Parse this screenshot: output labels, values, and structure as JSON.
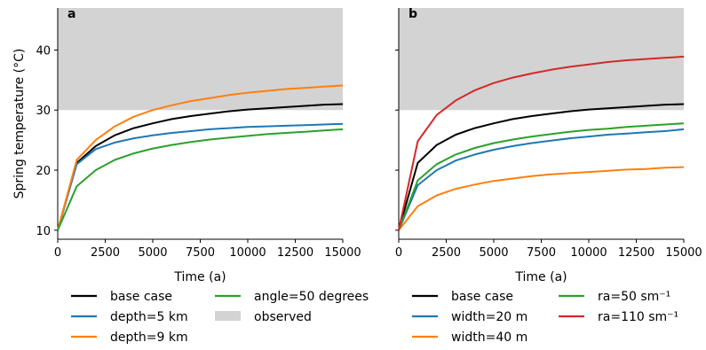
{
  "chart_data": [
    {
      "type": "line",
      "panel_label": "a",
      "xlabel": "Time (a)",
      "ylabel": "Spring temperature (°C)",
      "xlim": [
        0,
        15000
      ],
      "ylim": [
        8.5,
        47
      ],
      "xticks": [
        0,
        2500,
        5000,
        7500,
        10000,
        12500,
        15000
      ],
      "yticks": [
        10,
        20,
        30,
        40
      ],
      "observed_band": {
        "name": "observed",
        "y_range": [
          30,
          47
        ],
        "color": "#d3d3d3"
      },
      "x": [
        0,
        1000,
        2000,
        3000,
        4000,
        5000,
        6000,
        7000,
        8000,
        9000,
        10000,
        11000,
        12000,
        13000,
        14000,
        15000
      ],
      "series": [
        {
          "name": "base case",
          "color": "#000000",
          "values": [
            10,
            21.2,
            24.0,
            25.8,
            27.0,
            27.8,
            28.5,
            29.0,
            29.4,
            29.8,
            30.1,
            30.3,
            30.5,
            30.7,
            30.9,
            31.0
          ]
        },
        {
          "name": "depth=5 km",
          "color": "#1f77b4",
          "values": [
            10,
            21.0,
            23.5,
            24.6,
            25.3,
            25.8,
            26.2,
            26.5,
            26.8,
            27.0,
            27.2,
            27.3,
            27.4,
            27.5,
            27.6,
            27.7
          ]
        },
        {
          "name": "depth=9 km",
          "color": "#ff7f0e",
          "values": [
            10,
            21.7,
            25.0,
            27.3,
            28.9,
            30.0,
            30.8,
            31.5,
            32.0,
            32.5,
            32.9,
            33.2,
            33.5,
            33.7,
            33.9,
            34.1
          ]
        },
        {
          "name": "angle=50 degrees",
          "color": "#2ca02c",
          "values": [
            10,
            17.3,
            20.0,
            21.7,
            22.8,
            23.6,
            24.2,
            24.7,
            25.1,
            25.4,
            25.7,
            26.0,
            26.2,
            26.4,
            26.6,
            26.8
          ]
        }
      ],
      "legend": [
        "base case",
        "depth=5 km",
        "depth=9 km",
        "angle=50 degrees",
        "observed"
      ],
      "legend_placement": "below"
    },
    {
      "type": "line",
      "panel_label": "b",
      "xlabel": "Time (a)",
      "xlim": [
        0,
        15000
      ],
      "ylim": [
        8.5,
        47
      ],
      "xticks": [
        0,
        2500,
        5000,
        7500,
        10000,
        12500,
        15000
      ],
      "yticks": [
        10,
        20,
        30,
        40
      ],
      "observed_band": {
        "y_range": [
          30,
          47
        ],
        "color": "#d3d3d3"
      },
      "x": [
        0,
        1000,
        2000,
        3000,
        4000,
        5000,
        6000,
        7000,
        8000,
        9000,
        10000,
        11000,
        12000,
        13000,
        14000,
        15000
      ],
      "series": [
        {
          "name": "base case",
          "color": "#000000",
          "values": [
            10,
            21.2,
            24.2,
            25.9,
            27.0,
            27.8,
            28.5,
            29.0,
            29.4,
            29.8,
            30.1,
            30.3,
            30.5,
            30.7,
            30.9,
            31.0
          ]
        },
        {
          "name": "width=20 m",
          "color": "#1f77b4",
          "values": [
            10,
            17.5,
            20.0,
            21.6,
            22.6,
            23.4,
            24.0,
            24.5,
            24.9,
            25.3,
            25.6,
            25.9,
            26.1,
            26.3,
            26.5,
            26.8
          ]
        },
        {
          "name": "width=40 m",
          "color": "#ff7f0e",
          "values": [
            10,
            14.0,
            15.8,
            16.9,
            17.6,
            18.2,
            18.6,
            19.0,
            19.3,
            19.5,
            19.7,
            19.9,
            20.1,
            20.2,
            20.4,
            20.5
          ]
        },
        {
          "name": "ra=50 sm⁻¹",
          "color": "#2ca02c",
          "values": [
            10,
            18.3,
            21.0,
            22.6,
            23.7,
            24.5,
            25.1,
            25.6,
            26.0,
            26.4,
            26.7,
            26.9,
            27.2,
            27.4,
            27.6,
            27.8
          ]
        },
        {
          "name": "ra=110 sm⁻¹",
          "color": "#d62728",
          "values": [
            10,
            24.8,
            29.2,
            31.6,
            33.3,
            34.5,
            35.4,
            36.1,
            36.7,
            37.2,
            37.6,
            38.0,
            38.3,
            38.5,
            38.7,
            38.9
          ]
        }
      ],
      "legend": [
        "base case",
        "width=20 m",
        "width=40 m",
        "ra=50 sm⁻¹",
        "ra=110 sm⁻¹"
      ],
      "legend_placement": "below"
    }
  ]
}
